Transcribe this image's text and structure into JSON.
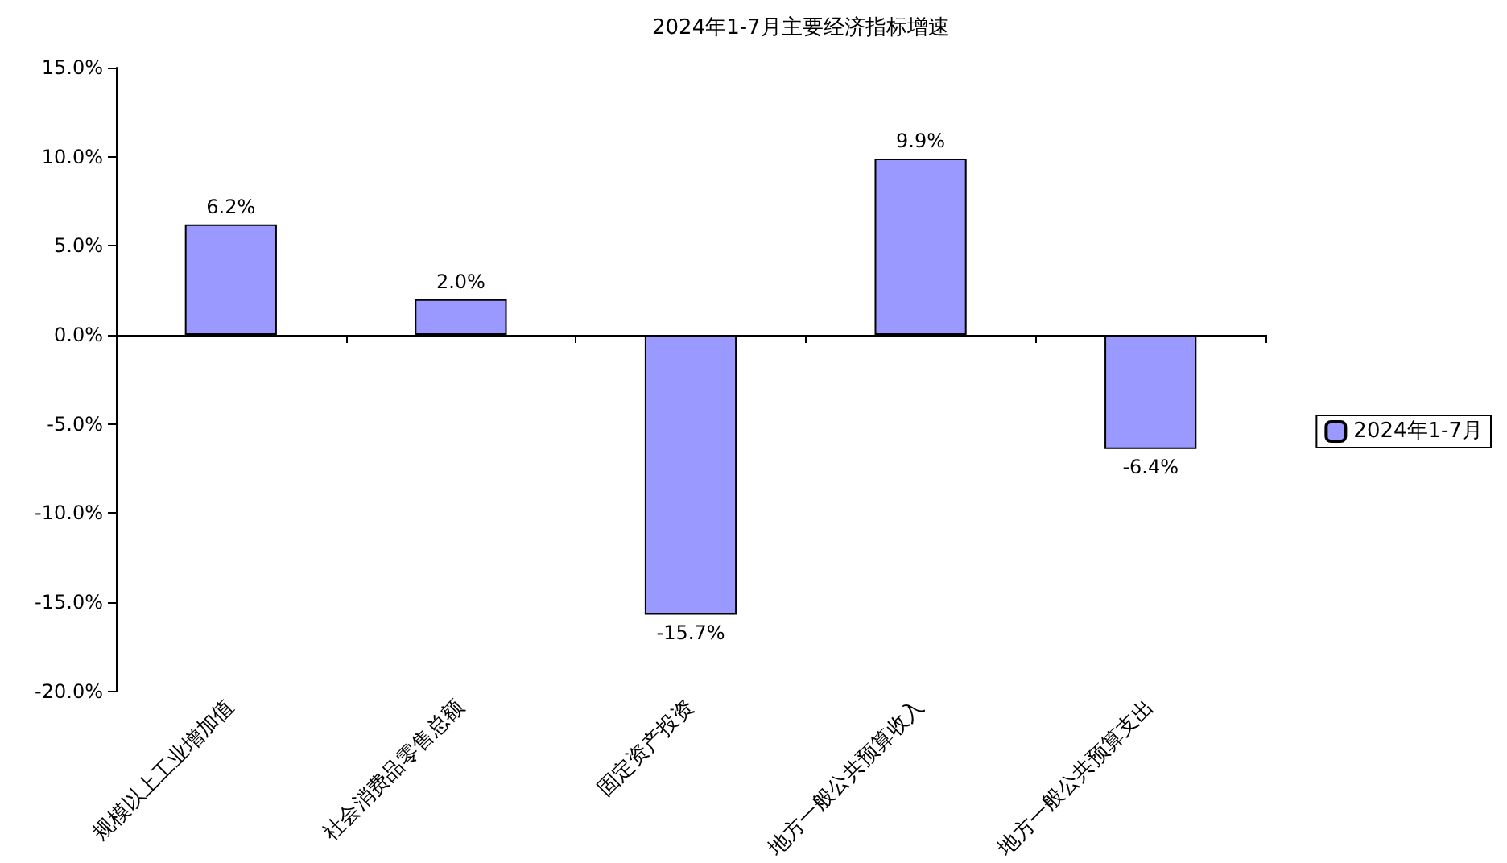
{
  "chart_data": {
    "type": "bar",
    "title": "2024年1-7月主要经济指标增速",
    "categories": [
      "规模以上工业增加值",
      "社会消费品零售总额",
      "固定资产投资",
      "地方一般公共预算收入",
      "地方一般公共预算支出"
    ],
    "series": [
      {
        "name": "2024年1-7月",
        "color": "#9999ff",
        "values": [
          6.2,
          2.0,
          -15.7,
          9.9,
          -6.4
        ],
        "value_labels": [
          "6.2%",
          "2.0%",
          "-15.7%",
          "9.9%",
          "-6.4%"
        ]
      }
    ],
    "ylim": [
      -20,
      15
    ],
    "yticks": [
      {
        "value": -20,
        "label": "-20.0%"
      },
      {
        "value": -15,
        "label": "-15.0%"
      },
      {
        "value": -10,
        "label": "-10.0%"
      },
      {
        "value": -5,
        "label": "-5.0%"
      },
      {
        "value": 0,
        "label": "0.0%"
      },
      {
        "value": 5,
        "label": "5.0%"
      },
      {
        "value": 10,
        "label": "10.0%"
      },
      {
        "value": 15,
        "label": "15.0%"
      }
    ],
    "legend": "right"
  }
}
